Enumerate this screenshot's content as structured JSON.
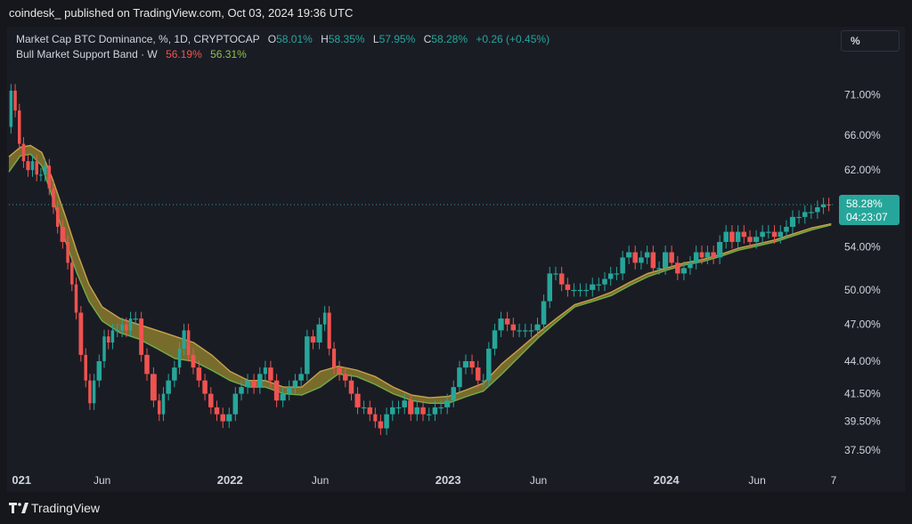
{
  "header": {
    "publisher_line": "coindesk_ published on TradingView.com, Oct 03, 2024 19:36 UTC"
  },
  "legend": {
    "symbol_title": "Market Cap BTC Dominance, %, 1D, CRYPTOCAP",
    "o_label": "O",
    "o_value": "58.01%",
    "h_label": "H",
    "h_value": "58.35%",
    "l_label": "L",
    "l_value": "57.95%",
    "c_label": "C",
    "c_value": "58.28%",
    "change": "+0.26 (+0.45%)",
    "indicator_title": "Bull Market Support Band · W",
    "indicator_red": "56.19%",
    "indicator_green": "56.31%"
  },
  "toolbar": {
    "percent_button": "%"
  },
  "price_tag": {
    "value": "58.28%",
    "countdown": "04:23:07"
  },
  "footer": {
    "brand": "TradingView"
  },
  "colors": {
    "background": "#1a1c24",
    "candle_up": "#26a69a",
    "candle_down": "#ef5350",
    "band_fill": "#8a7a2e",
    "band_upper": "#c9a34a",
    "band_lower": "#6fae4a",
    "price_tag": "#26a69a"
  },
  "chart_data": {
    "type": "line",
    "title": "Market Cap BTC Dominance, %, 1D, CRYPTOCAP",
    "y_scale": "log",
    "ylim": [
      36.5,
      75
    ],
    "y_ticks": [
      {
        "label": "71.00%",
        "value": 71.0
      },
      {
        "label": "66.00%",
        "value": 66.0
      },
      {
        "label": "62.00%",
        "value": 62.0
      },
      {
        "label": "54.00%",
        "value": 54.0
      },
      {
        "label": "50.00%",
        "value": 50.0
      },
      {
        "label": "47.00%",
        "value": 47.0
      },
      {
        "label": "44.00%",
        "value": 44.0
      },
      {
        "label": "41.50%",
        "value": 41.5
      },
      {
        "label": "39.50%",
        "value": 39.5
      },
      {
        "label": "37.50%",
        "value": 37.5
      }
    ],
    "x_ticks": [
      {
        "label": "021",
        "date": "2021-01-01"
      },
      {
        "label": "Jun",
        "date": "2021-06-01"
      },
      {
        "label": "2022",
        "date": "2022-01-01"
      },
      {
        "label": "Jun",
        "date": "2022-06-01"
      },
      {
        "label": "2023",
        "date": "2023-01-01"
      },
      {
        "label": "Jun",
        "date": "2023-06-01"
      },
      {
        "label": "2024",
        "date": "2024-01-01"
      },
      {
        "label": "Jun",
        "date": "2024-06-01"
      },
      {
        "label": "7",
        "date": "2024-10-07"
      }
    ],
    "xlim": [
      "2020-12-27",
      "2024-10-10"
    ],
    "current_price_line": 58.28,
    "series": [
      {
        "name": "Market Cap BTC Dominance",
        "points": [
          [
            "2020-12-27",
            67.0
          ],
          [
            "2021-01-03",
            71.5
          ],
          [
            "2021-01-10",
            69.0
          ],
          [
            "2021-01-17",
            65.0
          ],
          [
            "2021-01-24",
            63.0
          ],
          [
            "2021-02-01",
            62.0
          ],
          [
            "2021-02-08",
            63.0
          ],
          [
            "2021-02-15",
            61.5
          ],
          [
            "2021-02-22",
            61.5
          ],
          [
            "2021-03-01",
            62.5
          ],
          [
            "2021-03-08",
            60.0
          ],
          [
            "2021-03-15",
            58.0
          ],
          [
            "2021-03-22",
            56.0
          ],
          [
            "2021-04-01",
            54.5
          ],
          [
            "2021-04-08",
            52.5
          ],
          [
            "2021-04-15",
            50.5
          ],
          [
            "2021-04-22",
            48.0
          ],
          [
            "2021-05-01",
            44.5
          ],
          [
            "2021-05-08",
            42.5
          ],
          [
            "2021-05-15",
            40.8
          ],
          [
            "2021-05-22",
            42.5
          ],
          [
            "2021-06-01",
            44.0
          ],
          [
            "2021-06-08",
            46.0
          ],
          [
            "2021-06-15",
            45.5
          ],
          [
            "2021-06-22",
            46.5
          ],
          [
            "2021-07-01",
            46.5
          ],
          [
            "2021-07-08",
            47.0
          ],
          [
            "2021-07-15",
            46.5
          ],
          [
            "2021-07-22",
            47.5
          ],
          [
            "2021-08-01",
            47.5
          ],
          [
            "2021-08-10",
            44.5
          ],
          [
            "2021-08-20",
            43.0
          ],
          [
            "2021-09-01",
            41.0
          ],
          [
            "2021-09-08",
            40.0
          ],
          [
            "2021-09-15",
            41.5
          ],
          [
            "2021-09-25",
            42.5
          ],
          [
            "2021-10-05",
            43.5
          ],
          [
            "2021-10-12",
            45.0
          ],
          [
            "2021-10-20",
            46.5
          ],
          [
            "2021-10-27",
            44.5
          ],
          [
            "2021-11-05",
            43.5
          ],
          [
            "2021-11-15",
            42.5
          ],
          [
            "2021-11-25",
            41.5
          ],
          [
            "2021-12-05",
            40.5
          ],
          [
            "2021-12-15",
            40.0
          ],
          [
            "2021-12-25",
            39.5
          ],
          [
            "2022-01-05",
            40.0
          ],
          [
            "2022-01-15",
            41.5
          ],
          [
            "2022-01-25",
            42.0
          ],
          [
            "2022-02-05",
            42.5
          ],
          [
            "2022-02-15",
            42.0
          ],
          [
            "2022-02-25",
            43.0
          ],
          [
            "2022-03-05",
            43.5
          ],
          [
            "2022-03-15",
            42.5
          ],
          [
            "2022-03-25",
            41.0
          ],
          [
            "2022-04-05",
            41.5
          ],
          [
            "2022-04-15",
            42.0
          ],
          [
            "2022-04-25",
            42.5
          ],
          [
            "2022-05-05",
            43.0
          ],
          [
            "2022-05-15",
            46.0
          ],
          [
            "2022-05-25",
            45.5
          ],
          [
            "2022-06-05",
            47.0
          ],
          [
            "2022-06-12",
            48.0
          ],
          [
            "2022-06-20",
            45.0
          ],
          [
            "2022-06-28",
            43.5
          ],
          [
            "2022-07-08",
            43.0
          ],
          [
            "2022-07-18",
            42.5
          ],
          [
            "2022-07-28",
            41.5
          ],
          [
            "2022-08-08",
            40.5
          ],
          [
            "2022-08-18",
            40.5
          ],
          [
            "2022-08-28",
            40.0
          ],
          [
            "2022-09-05",
            39.5
          ],
          [
            "2022-09-15",
            39.0
          ],
          [
            "2022-09-25",
            40.0
          ],
          [
            "2022-10-05",
            40.5
          ],
          [
            "2022-10-15",
            40.5
          ],
          [
            "2022-10-25",
            41.0
          ],
          [
            "2022-11-05",
            40.0
          ],
          [
            "2022-11-15",
            40.5
          ],
          [
            "2022-11-25",
            40.0
          ],
          [
            "2022-12-05",
            40.0
          ],
          [
            "2022-12-15",
            40.5
          ],
          [
            "2022-12-25",
            40.5
          ],
          [
            "2023-01-05",
            41.0
          ],
          [
            "2023-01-15",
            42.0
          ],
          [
            "2023-01-25",
            43.5
          ],
          [
            "2023-02-05",
            44.0
          ],
          [
            "2023-02-15",
            43.5
          ],
          [
            "2023-02-25",
            42.5
          ],
          [
            "2023-03-05",
            42.5
          ],
          [
            "2023-03-15",
            45.0
          ],
          [
            "2023-03-25",
            46.5
          ],
          [
            "2023-04-05",
            47.5
          ],
          [
            "2023-04-15",
            47.0
          ],
          [
            "2023-04-25",
            46.5
          ],
          [
            "2023-05-05",
            46.5
          ],
          [
            "2023-05-15",
            46.5
          ],
          [
            "2023-05-25",
            46.5
          ],
          [
            "2023-06-05",
            47.0
          ],
          [
            "2023-06-15",
            49.0
          ],
          [
            "2023-06-25",
            51.5
          ],
          [
            "2023-07-05",
            51.5
          ],
          [
            "2023-07-15",
            50.5
          ],
          [
            "2023-07-25",
            50.0
          ],
          [
            "2023-08-05",
            50.0
          ],
          [
            "2023-08-15",
            50.0
          ],
          [
            "2023-08-25",
            50.0
          ],
          [
            "2023-09-05",
            50.5
          ],
          [
            "2023-09-15",
            50.5
          ],
          [
            "2023-09-25",
            51.0
          ],
          [
            "2023-10-05",
            51.5
          ],
          [
            "2023-10-15",
            51.5
          ],
          [
            "2023-10-25",
            53.0
          ],
          [
            "2023-11-05",
            53.5
          ],
          [
            "2023-11-15",
            52.5
          ],
          [
            "2023-11-25",
            53.0
          ],
          [
            "2023-12-05",
            53.5
          ],
          [
            "2023-12-15",
            52.0
          ],
          [
            "2023-12-25",
            52.0
          ],
          [
            "2024-01-05",
            53.5
          ],
          [
            "2024-01-15",
            52.5
          ],
          [
            "2024-01-25",
            51.5
          ],
          [
            "2024-02-05",
            52.0
          ],
          [
            "2024-02-15",
            52.5
          ],
          [
            "2024-02-25",
            53.5
          ],
          [
            "2024-03-05",
            53.0
          ],
          [
            "2024-03-15",
            53.5
          ],
          [
            "2024-03-25",
            53.0
          ],
          [
            "2024-04-05",
            54.5
          ],
          [
            "2024-04-15",
            55.5
          ],
          [
            "2024-04-25",
            54.5
          ],
          [
            "2024-05-05",
            55.5
          ],
          [
            "2024-05-15",
            55.0
          ],
          [
            "2024-05-25",
            54.5
          ],
          [
            "2024-06-05",
            55.0
          ],
          [
            "2024-06-15",
            55.5
          ],
          [
            "2024-06-25",
            55.5
          ],
          [
            "2024-07-05",
            55.0
          ],
          [
            "2024-07-15",
            55.5
          ],
          [
            "2024-07-25",
            56.0
          ],
          [
            "2024-08-05",
            57.0
          ],
          [
            "2024-08-15",
            57.0
          ],
          [
            "2024-08-25",
            57.5
          ],
          [
            "2024-09-05",
            57.5
          ],
          [
            "2024-09-15",
            58.0
          ],
          [
            "2024-09-25",
            58.3
          ],
          [
            "2024-10-03",
            58.28
          ]
        ]
      },
      {
        "name": "Bull Market Support Band",
        "upper": [
          [
            "2020-12-27",
            63.5
          ],
          [
            "2021-01-15",
            64.6
          ],
          [
            "2021-02-01",
            64.8
          ],
          [
            "2021-02-20",
            64.0
          ],
          [
            "2021-03-10",
            61.0
          ],
          [
            "2021-04-01",
            57.0
          ],
          [
            "2021-04-20",
            53.5
          ],
          [
            "2021-05-10",
            50.5
          ],
          [
            "2021-06-01",
            48.5
          ],
          [
            "2021-07-01",
            47.5
          ],
          [
            "2021-08-01",
            47.0
          ],
          [
            "2021-09-01",
            46.5
          ],
          [
            "2021-10-01",
            46.0
          ],
          [
            "2021-11-01",
            45.5
          ],
          [
            "2021-12-01",
            44.5
          ],
          [
            "2022-01-01",
            43.2
          ],
          [
            "2022-02-01",
            42.5
          ],
          [
            "2022-03-01",
            42.5
          ],
          [
            "2022-04-01",
            42.0
          ],
          [
            "2022-05-01",
            42.0
          ],
          [
            "2022-06-01",
            43.2
          ],
          [
            "2022-07-01",
            43.6
          ],
          [
            "2022-08-01",
            43.3
          ],
          [
            "2022-09-01",
            42.8
          ],
          [
            "2022-10-01",
            42.0
          ],
          [
            "2022-11-01",
            41.4
          ],
          [
            "2022-12-01",
            41.2
          ],
          [
            "2023-01-01",
            41.3
          ],
          [
            "2023-02-01",
            41.8
          ],
          [
            "2023-03-01",
            42.3
          ],
          [
            "2023-04-01",
            43.8
          ],
          [
            "2023-05-01",
            45.0
          ],
          [
            "2023-06-01",
            46.3
          ],
          [
            "2023-07-01",
            47.5
          ],
          [
            "2023-08-01",
            48.7
          ],
          [
            "2023-09-01",
            49.2
          ],
          [
            "2023-10-01",
            49.8
          ],
          [
            "2023-11-01",
            50.7
          ],
          [
            "2023-12-01",
            51.5
          ],
          [
            "2024-01-01",
            52.0
          ],
          [
            "2024-02-01",
            52.5
          ],
          [
            "2024-03-01",
            52.8
          ],
          [
            "2024-04-01",
            53.3
          ],
          [
            "2024-05-01",
            53.9
          ],
          [
            "2024-06-01",
            54.3
          ],
          [
            "2024-07-01",
            54.7
          ],
          [
            "2024-08-01",
            55.3
          ],
          [
            "2024-09-01",
            55.9
          ],
          [
            "2024-10-03",
            56.31
          ]
        ],
        "lower": [
          [
            "2020-12-27",
            61.8
          ],
          [
            "2021-01-15",
            63.6
          ],
          [
            "2021-02-01",
            63.8
          ],
          [
            "2021-02-20",
            62.5
          ],
          [
            "2021-03-10",
            59.0
          ],
          [
            "2021-04-01",
            54.5
          ],
          [
            "2021-04-20",
            51.5
          ],
          [
            "2021-05-10",
            49.0
          ],
          [
            "2021-06-01",
            47.3
          ],
          [
            "2021-07-01",
            46.3
          ],
          [
            "2021-08-01",
            45.8
          ],
          [
            "2021-09-01",
            45.0
          ],
          [
            "2021-10-01",
            44.2
          ],
          [
            "2021-11-01",
            44.0
          ],
          [
            "2021-12-01",
            43.3
          ],
          [
            "2022-01-01",
            42.5
          ],
          [
            "2022-02-01",
            42.0
          ],
          [
            "2022-03-01",
            42.0
          ],
          [
            "2022-04-01",
            41.5
          ],
          [
            "2022-05-01",
            41.4
          ],
          [
            "2022-06-01",
            42.0
          ],
          [
            "2022-07-01",
            43.0
          ],
          [
            "2022-08-01",
            42.8
          ],
          [
            "2022-09-01",
            42.2
          ],
          [
            "2022-10-01",
            41.5
          ],
          [
            "2022-11-01",
            41.0
          ],
          [
            "2022-12-01",
            40.8
          ],
          [
            "2023-01-01",
            40.8
          ],
          [
            "2023-02-01",
            41.3
          ],
          [
            "2023-03-01",
            41.7
          ],
          [
            "2023-04-01",
            43.0
          ],
          [
            "2023-05-01",
            44.4
          ],
          [
            "2023-06-01",
            45.9
          ],
          [
            "2023-07-01",
            47.2
          ],
          [
            "2023-08-01",
            48.5
          ],
          [
            "2023-09-01",
            49.0
          ],
          [
            "2023-10-01",
            49.5
          ],
          [
            "2023-11-01",
            50.4
          ],
          [
            "2023-12-01",
            51.2
          ],
          [
            "2024-01-01",
            51.8
          ],
          [
            "2024-02-01",
            52.3
          ],
          [
            "2024-03-01",
            52.6
          ],
          [
            "2024-04-01",
            53.1
          ],
          [
            "2024-05-01",
            53.7
          ],
          [
            "2024-06-01",
            54.1
          ],
          [
            "2024-07-01",
            54.5
          ],
          [
            "2024-08-01",
            55.1
          ],
          [
            "2024-09-01",
            55.7
          ],
          [
            "2024-10-03",
            56.19
          ]
        ]
      }
    ]
  }
}
